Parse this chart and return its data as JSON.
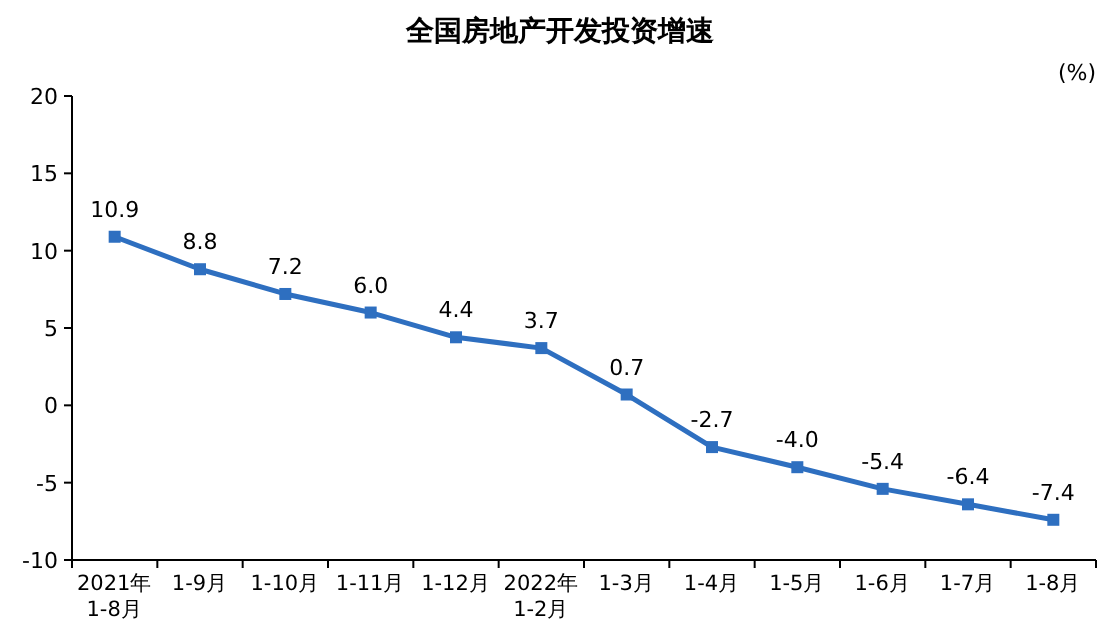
{
  "chart_data": {
    "type": "line",
    "title": "全国房地产开发投资增速",
    "ylabel": "(%)",
    "categories": [
      "2021年\n1-8月",
      "1-9月",
      "1-10月",
      "1-11月",
      "1-12月",
      "2022年\n1-2月",
      "1-3月",
      "1-4月",
      "1-5月",
      "1-6月",
      "1-7月",
      "1-8月"
    ],
    "values": [
      10.9,
      8.8,
      7.2,
      6.0,
      4.4,
      3.7,
      0.7,
      -2.7,
      -4.0,
      -5.4,
      -6.4,
      -7.4
    ],
    "value_labels": [
      "10.9",
      "8.8",
      "7.2",
      "6.0",
      "4.4",
      "3.7",
      "0.7",
      "-2.7",
      "-4.0",
      "-5.4",
      "-6.4",
      "-7.4"
    ],
    "color": "#2e6fc0",
    "marker": "square",
    "ylim": [
      -10,
      20
    ],
    "yticks": [
      -10,
      -5,
      0,
      5,
      10,
      15,
      20
    ]
  }
}
